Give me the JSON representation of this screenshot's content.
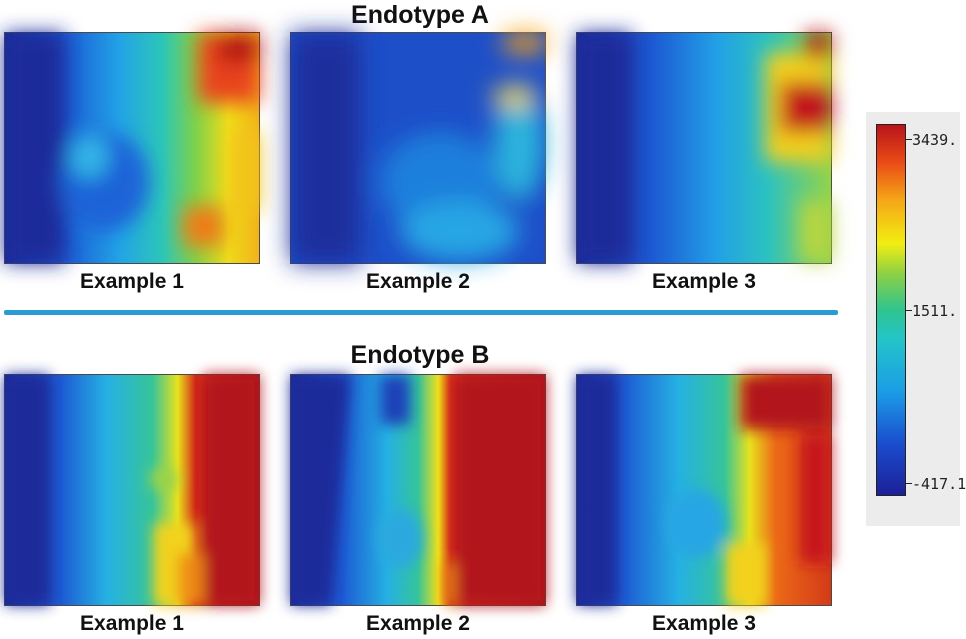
{
  "groups": [
    {
      "title": "Endotype A",
      "panels": [
        {
          "caption": "Example 1"
        },
        {
          "caption": "Example 2"
        },
        {
          "caption": "Example 3"
        }
      ]
    },
    {
      "title": "Endotype B",
      "panels": [
        {
          "caption": "Example 1"
        },
        {
          "caption": "Example 2"
        },
        {
          "caption": "Example 3"
        }
      ]
    }
  ],
  "colorbar": {
    "max_label": "3439.",
    "mid_label": "1511.",
    "min_label": "-417.1",
    "colors": [
      "#1d1f97",
      "#1a4ecf",
      "#1b9de6",
      "#23c4c9",
      "#2fc48f",
      "#8fd143",
      "#f2ee12",
      "#f5a417",
      "#ea4a16",
      "#b8141a"
    ]
  },
  "divider_color": "#2a9bd3"
}
